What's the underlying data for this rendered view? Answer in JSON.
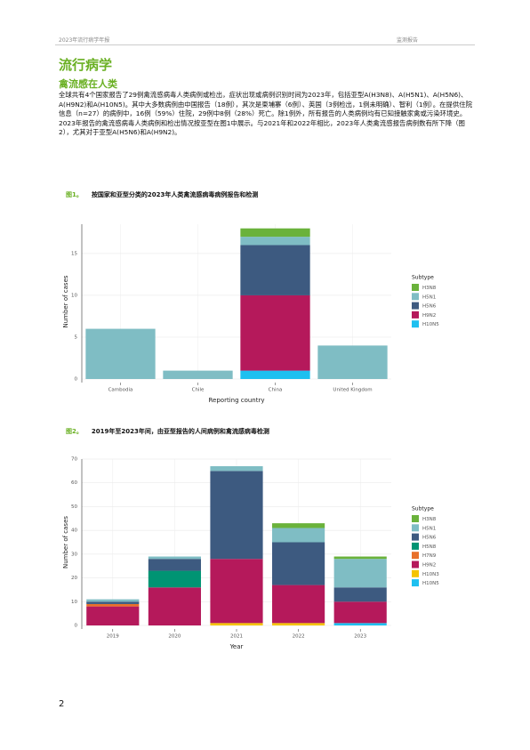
{
  "header": {
    "left": "2023年流行病学年报",
    "right": "监测报告"
  },
  "title": "流行病学",
  "subtitle": "禽流感在人类",
  "paragraph": "全球共有4个国家报告了29例禽流感病毒人类病例或检出，症状出现或病例识别时间为2023年，包括亚型A(H3N8)、A(H5N1)、A(H5N6)、A(H9N2)和A(H10N5)。其中大多数病例由中国报告（18例），其次是柬埔寨（6例）、英国（3例检出，1例未明确）、智利（1例）。在提供住院信息（n=27）的病例中，16例（59%）住院，29例中8例（28%）死亡。除1例外，所有报告的人类病例均有已知接触家禽或污染环境史。2023年报告的禽流感病毒人类病例和检出情况按亚型在图1中展示。与2021年和2022年相比，2023年人类禽流感报告病例数有所下降（图2），尤其对于亚型A(H5N6)和A(H9N2)。",
  "figures": [
    {
      "label": "图1。",
      "caption": "按国家和亚型分类的2023年人类禽流感病毒病例报告和检测"
    },
    {
      "label": "图2。",
      "caption": "2019年至2023年间，由亚型报告的人间病例和禽流感病毒检测"
    }
  ],
  "page_number": "2",
  "chart_data": [
    {
      "type": "stacked_bar",
      "x_label": "Reporting country",
      "y_label": "Number of cases",
      "legend_title": "Subtype",
      "categories": [
        "Cambodia",
        "Chile",
        "China",
        "United Kingdom"
      ],
      "series": [
        {
          "name": "H3N8",
          "color": "#6ab23b",
          "values": [
            0,
            0,
            1,
            0
          ]
        },
        {
          "name": "H5N1",
          "color": "#7fbdc4",
          "values": [
            6,
            1,
            1,
            4
          ]
        },
        {
          "name": "H5N6",
          "color": "#3d5a80",
          "values": [
            0,
            0,
            6,
            0
          ]
        },
        {
          "name": "H9N2",
          "color": "#b5195b",
          "values": [
            0,
            0,
            9,
            0
          ]
        },
        {
          "name": "H10N5",
          "color": "#1ec0f0",
          "values": [
            0,
            0,
            1,
            0
          ]
        }
      ],
      "ylim": [
        0,
        18.5
      ],
      "yticks": [
        0,
        5,
        10,
        15
      ],
      "grid": true,
      "legend": "right"
    },
    {
      "type": "stacked_bar",
      "x_label": "Year",
      "y_label": "Number of cases",
      "legend_title": "Subtype",
      "categories": [
        "2019",
        "2020",
        "2021",
        "2022",
        "2023"
      ],
      "series": [
        {
          "name": "H3N8",
          "color": "#6ab23b",
          "values": [
            0,
            0,
            0,
            2,
            1
          ]
        },
        {
          "name": "H5N1",
          "color": "#7fbdc4",
          "values": [
            1,
            1,
            2,
            6,
            12
          ]
        },
        {
          "name": "H5N6",
          "color": "#3d5a80",
          "values": [
            1,
            5,
            37,
            18,
            6
          ]
        },
        {
          "name": "H5N8",
          "color": "#009473",
          "values": [
            0,
            7,
            0,
            0,
            0
          ]
        },
        {
          "name": "H7N9",
          "color": "#e8702a",
          "values": [
            1,
            0,
            0,
            0,
            0
          ]
        },
        {
          "name": "H9N2",
          "color": "#b5195b",
          "values": [
            8,
            16,
            27,
            16,
            9
          ]
        },
        {
          "name": "H10N3",
          "color": "#f5c400",
          "values": [
            0,
            0,
            1,
            1,
            0
          ]
        },
        {
          "name": "H10N5",
          "color": "#1ec0f0",
          "values": [
            0,
            0,
            0,
            0,
            1
          ]
        }
      ],
      "ylim": [
        0,
        70
      ],
      "yticks": [
        0,
        10,
        20,
        30,
        40,
        50,
        60,
        70
      ],
      "grid": true,
      "legend": "right"
    }
  ]
}
